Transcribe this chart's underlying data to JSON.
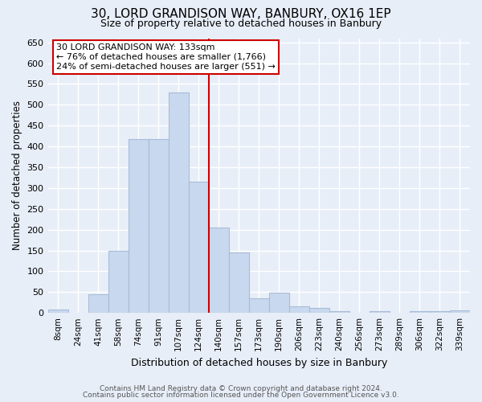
{
  "title": "30, LORD GRANDISON WAY, BANBURY, OX16 1EP",
  "subtitle": "Size of property relative to detached houses in Banbury",
  "xlabel": "Distribution of detached houses by size in Banbury",
  "ylabel": "Number of detached properties",
  "bar_labels": [
    "8sqm",
    "24sqm",
    "41sqm",
    "58sqm",
    "74sqm",
    "91sqm",
    "107sqm",
    "124sqm",
    "140sqm",
    "157sqm",
    "173sqm",
    "190sqm",
    "206sqm",
    "223sqm",
    "240sqm",
    "256sqm",
    "273sqm",
    "289sqm",
    "306sqm",
    "322sqm",
    "339sqm"
  ],
  "bar_values": [
    8,
    0,
    45,
    150,
    417,
    417,
    530,
    315,
    205,
    145,
    35,
    48,
    15,
    12,
    5,
    0,
    5,
    0,
    5,
    5,
    7
  ],
  "bar_color": "#c8d8ee",
  "bar_edge_color": "#a8bcd8",
  "vline_x": 7.5,
  "vline_color": "#cc0000",
  "ylim": [
    0,
    660
  ],
  "yticks": [
    0,
    50,
    100,
    150,
    200,
    250,
    300,
    350,
    400,
    450,
    500,
    550,
    600,
    650
  ],
  "annotation_title": "30 LORD GRANDISON WAY: 133sqm",
  "annotation_line1": "← 76% of detached houses are smaller (1,766)",
  "annotation_line2": "24% of semi-detached houses are larger (551) →",
  "annotation_box_color": "#ffffff",
  "annotation_box_edge": "#cc0000",
  "footer1": "Contains HM Land Registry data © Crown copyright and database right 2024.",
  "footer2": "Contains public sector information licensed under the Open Government Licence v3.0.",
  "background_color": "#e8eef8",
  "plot_bg_color": "#e8eef8",
  "grid_color": "#ffffff"
}
